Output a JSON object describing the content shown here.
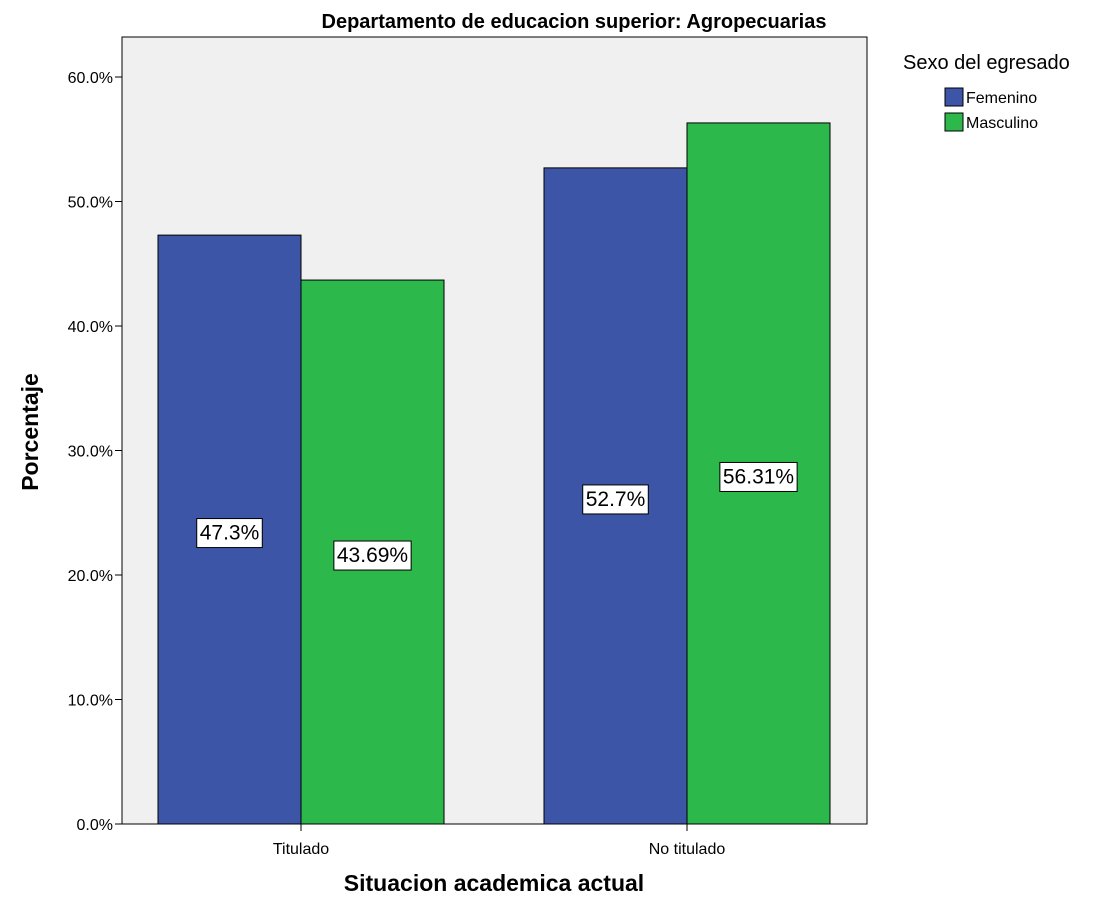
{
  "chart_data": {
    "type": "bar",
    "title": "Departamento de educacion superior: Agropecuarias",
    "xlabel": "Situacion academica actual",
    "ylabel": "Porcentaje",
    "categories": [
      "Titulado",
      "No titulado"
    ],
    "series": [
      {
        "name": "Femenino",
        "values": [
          47.3,
          52.7
        ],
        "labels": [
          "47.3%",
          "52.7%"
        ],
        "color": "#3d55a7"
      },
      {
        "name": "Masculino",
        "values": [
          43.69,
          56.31
        ],
        "labels": [
          "43.69%",
          "56.31%"
        ],
        "color": "#2db84b"
      }
    ],
    "ylim": [
      0,
      60
    ],
    "yticks": [
      "0.0%",
      "10.0%",
      "20.0%",
      "30.0%",
      "40.0%",
      "50.0%",
      "60.0%"
    ],
    "ytick_values": [
      0,
      10,
      20,
      30,
      40,
      50,
      60
    ],
    "grid": false,
    "legend": {
      "title": "Sexo del egresado",
      "placement": "right"
    },
    "plot_background": "#f0f0f0"
  }
}
